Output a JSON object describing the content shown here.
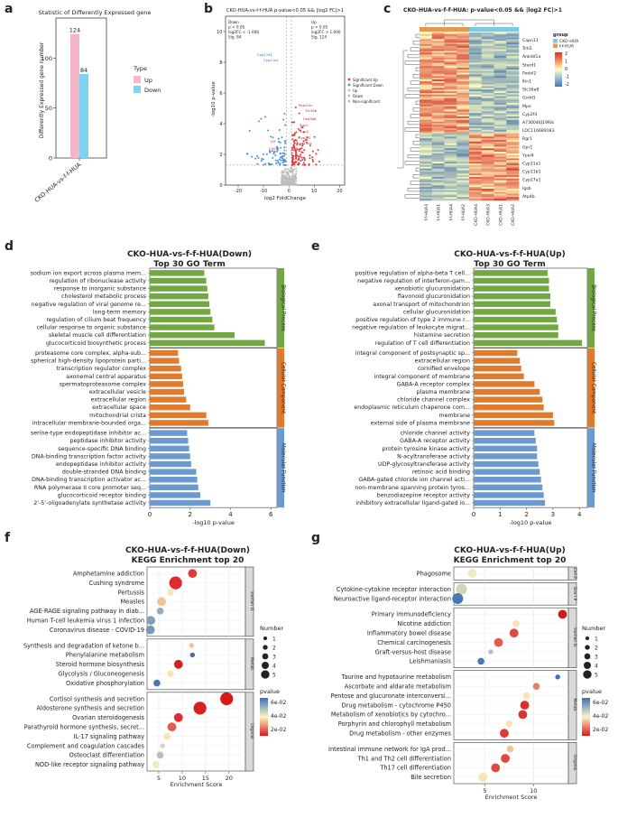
{
  "chart_data": [
    {
      "panel": "a",
      "type": "bar",
      "title": "Statistic of Differently Expressed gene",
      "categories": [
        "CKO-HUA-vs-f-f-HUA"
      ],
      "series": [
        {
          "name": "Up",
          "values": [
            124
          ],
          "color": "#f4b6c6"
        },
        {
          "name": "Down",
          "values": [
            84
          ],
          "color": "#7fd3f0"
        }
      ],
      "ylabel": "Differently Expressed gene number",
      "yticks": [
        "0",
        "50",
        "100"
      ],
      "ylim": [
        0,
        140
      ],
      "legend_title": "Type"
    },
    {
      "panel": "b",
      "type": "scatter",
      "title": "CKO-HUA-vs-f-f-HUA p-value<0.05 && |log2 FC|>1",
      "xlabel": "log2 FoldChange",
      "ylabel": "-log10 p-value",
      "xticks": [
        "-20",
        "-10",
        "0",
        "10",
        "20"
      ],
      "yticks": [
        "0",
        "2",
        "4",
        "6",
        "8",
        "10"
      ],
      "xlim": [
        -25,
        22
      ],
      "ylim": [
        0,
        11
      ],
      "stats_down": [
        "Down",
        "p < 0.05",
        "log2FC < -1.000",
        "Sig. 84"
      ],
      "stats_up": [
        "Up",
        "p < 0.05",
        "log2FC > 1.000",
        "Sig. 124"
      ],
      "legend": [
        "Significant Up",
        "Significant Down",
        "Up",
        "Down",
        "Non-significant"
      ],
      "labeled_genes": [
        "Cyp27a1",
        "Cyp11a1",
        "Ppp2r2c",
        "Ttc39b",
        "Hsd3b6",
        "Sgk1",
        "Lcn2",
        "Cyp2f2",
        "Cyp11b2",
        "Mpo",
        "Ltf",
        "Chil3"
      ]
    },
    {
      "panel": "c",
      "type": "heatmap",
      "title": "CKO-HUA-vs-f-f-HUA: p-value<0.05 && |log2 FC|>1",
      "columns": [
        "f-f-HUA3",
        "f-f-HUA1",
        "f-f-HUA4",
        "f-f-HUA2",
        "CKO-HUA4",
        "CKO-HUA3",
        "CKO-HUA1",
        "CKO-HUA2"
      ],
      "gene_labels": [
        "Capn11",
        "Tctl3",
        "Ankdd1a",
        "Stard1",
        "Podxl2",
        "Kin1",
        "Slc16a8",
        "Gsdd1",
        "Mpo",
        "Cyp2f4",
        "A730046J19Rik",
        "LOC116689183",
        "Rgr1",
        "Gpr1",
        "Ypel4",
        "Cyp11a1",
        "Cyp11b1",
        "Cyp27a1",
        "Igsb",
        "Atp4b"
      ],
      "legend_title": "group",
      "groups": [
        {
          "name": "CKO-HUA",
          "color": "#7ec8e3"
        },
        {
          "name": "f-f-HUA",
          "color": "#e9974a"
        }
      ],
      "scale_ticks": [
        "2",
        "1",
        "0",
        "-1",
        "-2"
      ]
    },
    {
      "panel": "d",
      "type": "bar",
      "title": "CKO-HUA-vs-f-f-HUA(Down)",
      "subtitle": "Top 30 GO Term",
      "xlabel": "-log10 p-value",
      "xticks": [
        "0",
        "2",
        "4",
        "6"
      ],
      "xlim": [
        0,
        6.3
      ],
      "groups": [
        {
          "name": "Biological Process",
          "color": "#72a843",
          "categories": [
            "sodium ion export across plasma mem...",
            "regulation of ribonuclease activity",
            "response to inorganic substance",
            "cholesterol metabolic process",
            "negative regulation of viral genome re...",
            "long-term memory",
            "regulation of cilium beat frequency",
            "cellular response to organic substance",
            "skeletal muscle cell differentiation",
            "glucocorticoid biosynthetic process"
          ],
          "values": [
            2.7,
            2.8,
            2.85,
            2.9,
            2.95,
            3.0,
            3.1,
            3.2,
            4.2,
            5.7
          ]
        },
        {
          "name": "Cellular Component",
          "color": "#e07a2c",
          "categories": [
            "proteasome core complex, alpha-sub...",
            "spherical high-density lipoprotein parti...",
            "transcription regulator complex",
            "axonemal central apparatus",
            "spermatoproteasome complex",
            "extracellular vesicle",
            "extracellular region",
            "extracellular space",
            "mitochondrial crista",
            "intracellular membrane-bounded orga..."
          ],
          "values": [
            1.4,
            1.45,
            1.55,
            1.6,
            1.65,
            1.7,
            1.8,
            2.0,
            2.8,
            2.9
          ]
        },
        {
          "name": "Molecular Function",
          "color": "#6a9ad0",
          "categories": [
            "serine-type endopeptidase inhibitor ac...",
            "peptidase inhibitor activity",
            "sequence-specific DNA binding",
            "DNA-binding transcription factor activity",
            "endopeptidase inhibitor activity",
            "double-stranded DNA binding",
            "DNA-binding transcription activator ac...",
            "RNA polymerase II core promoter seq...",
            "glucocorticoid receptor binding",
            "2'-5'-oligoadenylate synthetase activity"
          ],
          "values": [
            1.85,
            1.9,
            1.95,
            2.0,
            2.05,
            2.3,
            2.35,
            2.4,
            2.5,
            3.0
          ]
        }
      ]
    },
    {
      "panel": "e",
      "type": "bar",
      "title": "CKO-HUA-vs-f-f-HUA(Up)",
      "subtitle": "Top 30 GO Term",
      "xlabel": "-log10 p-value",
      "xticks": [
        "0",
        "1",
        "2",
        "3",
        "4"
      ],
      "xlim": [
        0,
        4.3
      ],
      "groups": [
        {
          "name": "Biological Process",
          "color": "#72a843",
          "categories": [
            "positive regulation of alpha-beta T cell...",
            "negative regulation of interferon-gam...",
            "xenobiotic glucuronidation",
            "flavonoid glucuronidation",
            "axonal transport of mitochondrion",
            "cellular glucuronidation",
            "positive regulation of type 2 immune r...",
            "negative regulation of leukocyte migrat...",
            "histamine secretion",
            "regulation of T cell differentiation"
          ],
          "values": [
            2.8,
            2.85,
            2.85,
            2.9,
            2.9,
            3.1,
            3.15,
            3.2,
            3.2,
            4.1
          ]
        },
        {
          "name": "Cellular Component",
          "color": "#e07a2c",
          "categories": [
            "integral component of postsynaptic sp...",
            "extracellular region",
            "cornified envelope",
            "integral component of membrane",
            "GABA-A receptor complex",
            "plasma membrane",
            "chloride channel complex",
            "endoplasmic reticulum chaperone com...",
            "membrane",
            "external side of plasma membrane"
          ],
          "values": [
            1.65,
            1.75,
            1.8,
            1.9,
            2.3,
            2.5,
            2.6,
            2.65,
            3.0,
            3.05
          ]
        },
        {
          "name": "Molecular Function",
          "color": "#6a9ad0",
          "categories": [
            "chloride channel activity",
            "GABA-A receptor activity",
            "protein tyrosine kinase activity",
            "N-acyltransferase activity",
            "UDP-glycosyltransferase activity",
            "retinoic acid binding",
            "GABA-gated chloride ion channel acti...",
            "non-membrane spanning protein tyros...",
            "benzodiazepine receptor activity",
            "inhibitory extracellular ligand-gated io..."
          ],
          "values": [
            2.3,
            2.35,
            2.4,
            2.4,
            2.45,
            2.5,
            2.55,
            2.6,
            2.65,
            2.7
          ]
        }
      ]
    },
    {
      "panel": "f",
      "type": "scatter",
      "title": "CKO-HUA-vs-f-f-HUA(Down)",
      "subtitle": "KEGG Enrichment top 20",
      "xlabel": "Enrichment Score",
      "xticks": [
        "5",
        "10",
        "15",
        "20"
      ],
      "xlim": [
        2.5,
        23.5
      ],
      "size_legend_title": "Number",
      "size_legend": [
        "1",
        "2",
        "3",
        "4",
        "5"
      ],
      "color_legend_title": "pvalue",
      "color_legend": [
        "6e-02",
        "4e-02",
        "2e-02"
      ],
      "groups": [
        {
          "name": "Human Diseases",
          "points": [
            {
              "term": "Amphetamine addiction",
              "x": 12.2,
              "n": 3,
              "p": 0.01
            },
            {
              "term": "Cushing syndrome",
              "x": 8.6,
              "n": 5,
              "p": 0.008
            },
            {
              "term": "Pertussis",
              "x": 7.5,
              "n": 2,
              "p": 0.035
            },
            {
              "term": "Measles",
              "x": 5.6,
              "n": 3,
              "p": 0.03
            },
            {
              "term": "AGE-RAGE signaling pathway in diab...",
              "x": 5.3,
              "n": 2,
              "p": 0.055
            },
            {
              "term": "Human T-cell leukemia virus 1 infection",
              "x": 3.3,
              "n": 3,
              "p": 0.058
            },
            {
              "term": "Coronavirus disease - COVID-19",
              "x": 3.2,
              "n": 3,
              "p": 0.06
            }
          ]
        },
        {
          "name": "Metabolism",
          "points": [
            {
              "term": "Synthesis and degradation of ketone b...",
              "x": 12.0,
              "n": 1,
              "p": 0.03
            },
            {
              "term": "Phenylalanine metabolism",
              "x": 12.2,
              "n": 1,
              "p": 0.07
            },
            {
              "term": "Steroid hormone biosynthesis",
              "x": 9.2,
              "n": 3,
              "p": 0.006
            },
            {
              "term": "Glycolysis / Gluconeogenesis",
              "x": 7.5,
              "n": 2,
              "p": 0.035
            },
            {
              "term": "Oxidative phosphorylation",
              "x": 4.6,
              "n": 2,
              "p": 0.068
            }
          ]
        },
        {
          "name": "Organismal Systems",
          "points": [
            {
              "term": "Cortisol synthesis and secretion",
              "x": 19.5,
              "n": 5,
              "p": 0.005
            },
            {
              "term": "Aldosterone synthesis and secretion",
              "x": 13.8,
              "n": 5,
              "p": 0.006
            },
            {
              "term": "Ovarian steroidogenesis",
              "x": 9.2,
              "n": 3,
              "p": 0.008
            },
            {
              "term": "Parathyroid hormone synthesis, secret...",
              "x": 7.8,
              "n": 3,
              "p": 0.015
            },
            {
              "term": "IL-17 signaling pathway",
              "x": 6.8,
              "n": 2,
              "p": 0.035
            },
            {
              "term": "Complement and coagulation cascades",
              "x": 5.8,
              "n": 1,
              "p": 0.045
            },
            {
              "term": "Osteoclast differentiation",
              "x": 5.3,
              "n": 2,
              "p": 0.05
            },
            {
              "term": "NOD-like receptor signaling pathway",
              "x": 4.4,
              "n": 2,
              "p": 0.04
            }
          ]
        }
      ]
    },
    {
      "panel": "g",
      "type": "scatter",
      "title": "CKO-HUA-vs-f-f-HUA(Up)",
      "subtitle": "KEGG Enrichment top 20",
      "xlabel": "Enrichment Score",
      "xticks": [
        "5",
        "10"
      ],
      "xlim": [
        1.8,
        13.6
      ],
      "size_legend_title": "Number",
      "size_legend": [
        "1",
        "2",
        "3",
        "4",
        "5"
      ],
      "color_legend_title": "pvalue",
      "color_legend": [
        "6e-02",
        "4e-02",
        "2e-02"
      ],
      "groups": [
        {
          "name": "Cellular Processes",
          "points": [
            {
              "term": "Phagosome",
              "x": 3.7,
              "n": 3,
              "p": 0.04
            }
          ]
        },
        {
          "name": "Environmental Information Processing",
          "points": [
            {
              "term": "Cytokine-cytokine receptor interaction",
              "x": 2.6,
              "n": 4,
              "p": 0.045
            },
            {
              "term": "Neuroactive ligand-receptor interaction",
              "x": 2.2,
              "n": 4,
              "p": 0.068
            }
          ]
        },
        {
          "name": "Human Diseases",
          "points": [
            {
              "term": "Primary immunodeficiency",
              "x": 13.0,
              "n": 3,
              "p": 0.005
            },
            {
              "term": "Nicotine addiction",
              "x": 8.2,
              "n": 2,
              "p": 0.035
            },
            {
              "term": "Inflammatory bowel disease",
              "x": 8.0,
              "n": 3,
              "p": 0.012
            },
            {
              "term": "Chemical carcinogenesis",
              "x": 6.4,
              "n": 3,
              "p": 0.015
            },
            {
              "term": "Graft-versus-host disease",
              "x": 5.6,
              "n": 1,
              "p": 0.05
            },
            {
              "term": "Leishmaniasis",
              "x": 4.6,
              "n": 2,
              "p": 0.068
            }
          ]
        },
        {
          "name": "Metabolism",
          "points": [
            {
              "term": "Taurine and hypotaurine metabolism",
              "x": 12.5,
              "n": 1,
              "p": 0.07
            },
            {
              "term": "Ascorbate and aldarate metabolism",
              "x": 10.3,
              "n": 2,
              "p": 0.02
            },
            {
              "term": "Pentose and glucuronate interconversi...",
              "x": 9.3,
              "n": 2,
              "p": 0.035
            },
            {
              "term": "Drug metabolism - cytochrome P450",
              "x": 9.1,
              "n": 3,
              "p": 0.008
            },
            {
              "term": "Metabolism of xenobiotics by cytochro...",
              "x": 8.9,
              "n": 3,
              "p": 0.009
            },
            {
              "term": "Porphyrin and chlorophyll metabolism",
              "x": 7.5,
              "n": 2,
              "p": 0.035
            },
            {
              "term": "Drug metabolism - other enzymes",
              "x": 7.0,
              "n": 3,
              "p": 0.01
            }
          ]
        },
        {
          "name": "Organismal Systems",
          "points": [
            {
              "term": "Intestinal immune network for IgA prod...",
              "x": 7.6,
              "n": 2,
              "p": 0.03
            },
            {
              "term": "Th1 and Th2 cell differentiation",
              "x": 7.1,
              "n": 3,
              "p": 0.012
            },
            {
              "term": "Th17 cell differentiation",
              "x": 6.1,
              "n": 3,
              "p": 0.012
            },
            {
              "term": "Bile secretion",
              "x": 4.8,
              "n": 3,
              "p": 0.035
            }
          ]
        }
      ]
    }
  ],
  "strip_labels_f": [
    "Human D.",
    "Metab.",
    "Organis."
  ],
  "strip_labels_g": [
    "Cell P.",
    "Env I P",
    "Human D.",
    "Metab.",
    "Organis."
  ],
  "panel_labels": [
    "a",
    "b",
    "c",
    "d",
    "e",
    "f",
    "g"
  ]
}
